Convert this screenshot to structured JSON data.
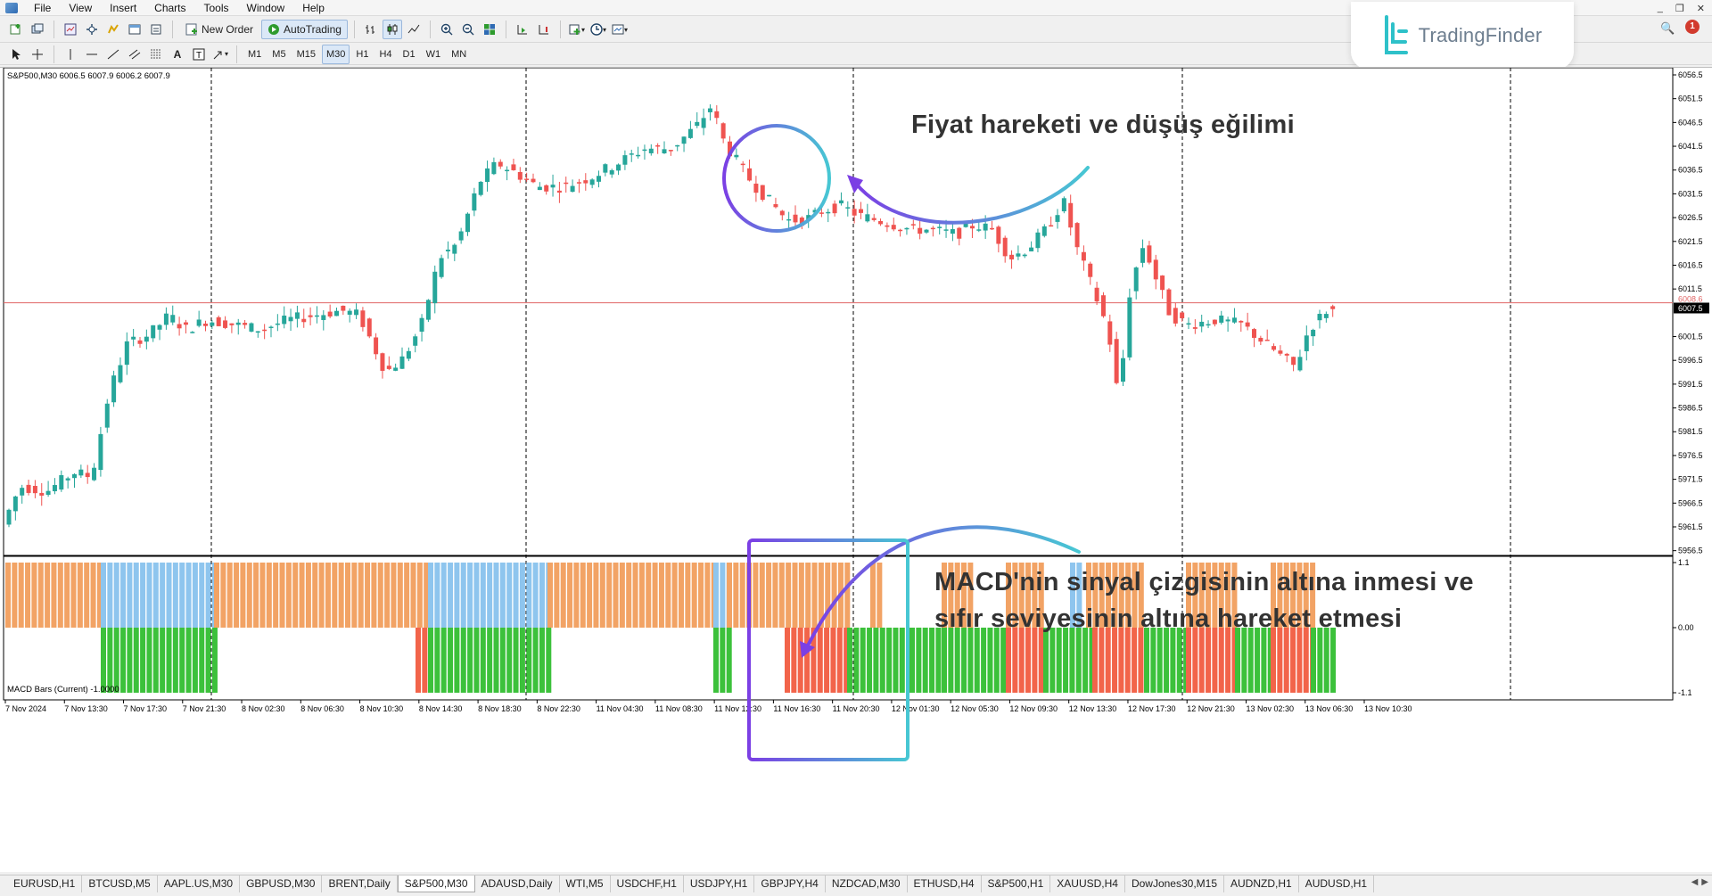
{
  "menu": {
    "items": [
      {
        "label": "File"
      },
      {
        "label": "View"
      },
      {
        "label": "Insert"
      },
      {
        "label": "Charts"
      },
      {
        "label": "Tools"
      },
      {
        "label": "Window"
      },
      {
        "label": "Help"
      }
    ],
    "window_controls": [
      "_",
      "❐",
      "✕"
    ]
  },
  "toolbar": {
    "new_order_label": "New Order",
    "autotrading_label": "AutoTrading",
    "timeframes": [
      "M1",
      "M5",
      "M15",
      "M30",
      "H1",
      "H4",
      "D1",
      "W1",
      "MN"
    ],
    "active_timeframe": "M30",
    "icons": [
      "new-chart-icon",
      "profiles-icon",
      "market-watch-icon",
      "navigator-icon",
      "data-window-icon",
      "terminal-icon",
      "strategy-tester-icon",
      "bar-chart-icon",
      "candlestick-icon",
      "line-chart-icon",
      "zoom-in-icon",
      "zoom-out-icon",
      "tile-windows-icon",
      "autoscroll-icon",
      "chart-shift-icon",
      "indicators-icon",
      "periods-icon",
      "templates-icon"
    ],
    "drawing_tools": [
      "cursor-icon",
      "crosshair-icon",
      "vertical-line-icon",
      "horizontal-line-icon",
      "trendline-icon",
      "channel-icon",
      "fibonacci-icon",
      "text-icon",
      "text-label-icon",
      "arrow-icon"
    ]
  },
  "brand": {
    "name": "TradingFinder",
    "accent": "#2ec1c9",
    "notification_count": "1"
  },
  "chart": {
    "symbol_info": "S&P500,M30  6006.5 6007.9 6006.2 6007.9",
    "current_price": "6007.5",
    "price_line_value": "6008.6",
    "colors": {
      "bull": "#26a69a",
      "bear": "#ef5350",
      "price_line": "#e06666",
      "macd_orange": "#f2a365",
      "macd_blue": "#8ec5ee",
      "macd_green": "#3cc13b",
      "macd_red": "#f2644a",
      "annotation_purple": "#7b3fe4",
      "annotation_cyan": "#47c7d3"
    },
    "price_axis": [
      "6056.5",
      "6051.5",
      "6046.5",
      "6041.5",
      "6036.5",
      "6031.5",
      "6026.5",
      "6021.5",
      "6016.5",
      "6011.5",
      "6008.6",
      "6001.5",
      "5996.5",
      "5991.5",
      "5986.5",
      "5981.5",
      "5976.5",
      "5971.5",
      "5966.5",
      "5961.5",
      "5956.5"
    ],
    "time_axis": [
      "7 Nov 2024",
      "7 Nov 13:30",
      "7 Nov 17:30",
      "7 Nov 21:30",
      "8 Nov 02:30",
      "8 Nov 06:30",
      "8 Nov 10:30",
      "8 Nov 14:30",
      "8 Nov 18:30",
      "8 Nov 22:30",
      "11 Nov 04:30",
      "11 Nov 08:30",
      "11 Nov 12:30",
      "11 Nov 16:30",
      "11 Nov 20:30",
      "12 Nov 01:30",
      "12 Nov 05:30",
      "12 Nov 09:30",
      "12 Nov 13:30",
      "12 Nov 17:30",
      "12 Nov 21:30",
      "13 Nov 02:30",
      "13 Nov 06:30",
      "13 Nov 10:30"
    ],
    "macd_label": "MACD Bars (Current) -1.0000",
    "macd_axis": [
      "1.1",
      "0.00",
      "-1.1"
    ]
  },
  "annotations": {
    "top": "Fiyat hareketi ve düşüş eğilimi",
    "bottom_line1": "MACD'nin sinyal çizgisinin altına inmesi ve",
    "bottom_line2": "sıfır seviyesinin altına hareket etmesi"
  },
  "tabs": [
    {
      "label": "EURUSD,H1"
    },
    {
      "label": "BTCUSD,M5"
    },
    {
      "label": "AAPL.US,M30"
    },
    {
      "label": "GBPUSD,M30"
    },
    {
      "label": "BRENT,Daily"
    },
    {
      "label": "S&P500,M30",
      "active": true
    },
    {
      "label": "ADAUSD,Daily"
    },
    {
      "label": "WTI,M5"
    },
    {
      "label": "USDCHF,H1"
    },
    {
      "label": "USDJPY,H1"
    },
    {
      "label": "GBPJPY,H4"
    },
    {
      "label": "NZDCAD,M30"
    },
    {
      "label": "ETHUSD,H4"
    },
    {
      "label": "S&P500,H1"
    },
    {
      "label": "XAUUSD,H4"
    },
    {
      "label": "DowJones30,M15"
    },
    {
      "label": "AUDNZD,H1"
    },
    {
      "label": "AUDUSD,H1"
    }
  ]
}
